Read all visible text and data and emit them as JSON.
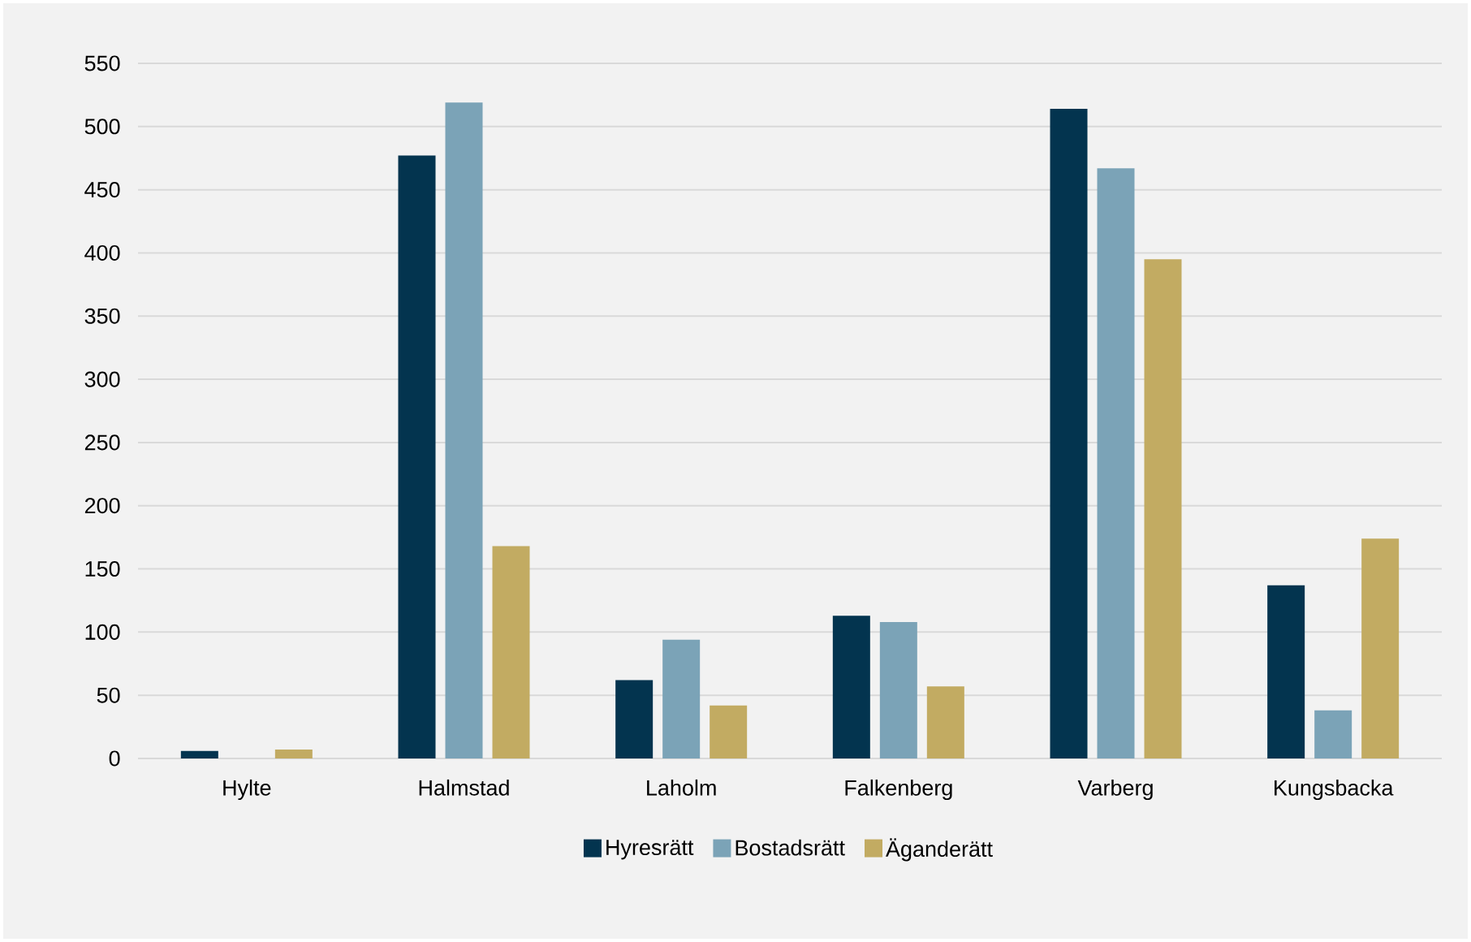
{
  "chart_data": {
    "type": "bar",
    "categories": [
      "Hylte",
      "Halmstad",
      "Laholm",
      "Falkenberg",
      "Varberg",
      "Kungsbacka"
    ],
    "series": [
      {
        "name": "Hyresrätt",
        "color": "#03344f",
        "values": [
          6,
          477,
          62,
          113,
          514,
          137
        ]
      },
      {
        "name": "Bostadsrätt",
        "color": "#7ba3b7",
        "values": [
          0,
          519,
          94,
          108,
          467,
          38
        ]
      },
      {
        "name": "Äganderätt",
        "color": "#c2ab62",
        "values": [
          7,
          168,
          42,
          57,
          395,
          174
        ]
      }
    ],
    "ylim": [
      0,
      550
    ],
    "yticks": [
      0,
      50,
      100,
      150,
      200,
      250,
      300,
      350,
      400,
      450,
      500,
      550
    ],
    "grid": "y",
    "legend": "bottom"
  }
}
